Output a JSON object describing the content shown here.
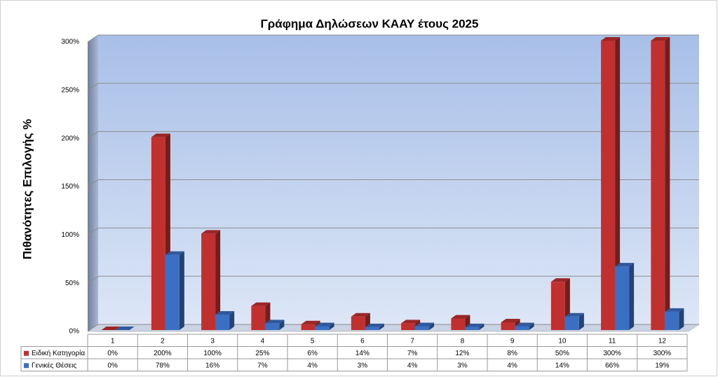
{
  "chart_data": {
    "type": "bar3d",
    "title": "Γράφημα Δηλώσεων ΚΑΑΥ έτους 2025",
    "y_label": "Πιθανότητες Επιλογής %",
    "categories": [
      "1",
      "2",
      "3",
      "4",
      "5",
      "6",
      "7",
      "8",
      "9",
      "10",
      "11",
      "12"
    ],
    "series": [
      {
        "name": "Ειδική Κατηγορία",
        "color": "#c0302e",
        "values": [
          0,
          200,
          100,
          25,
          6,
          14,
          7,
          12,
          8,
          50,
          300,
          300
        ],
        "value_labels": [
          "0%",
          "200%",
          "100%",
          "25%",
          "6%",
          "14%",
          "7%",
          "12%",
          "8%",
          "50%",
          "300%",
          "300%"
        ]
      },
      {
        "name": "Γενικές Θέσεις",
        "color": "#3b6fc3",
        "values": [
          0,
          78,
          16,
          7,
          4,
          3,
          4,
          3,
          4,
          14,
          66,
          19
        ],
        "value_labels": [
          "0%",
          "78%",
          "16%",
          "7%",
          "4%",
          "3%",
          "4%",
          "3%",
          "4%",
          "14%",
          "66%",
          "19%"
        ]
      }
    ],
    "ylim": [
      0,
      300
    ],
    "yticks": [
      {
        "value": 0,
        "label": "0%"
      },
      {
        "value": 50,
        "label": "50%"
      },
      {
        "value": 100,
        "label": "100%"
      },
      {
        "value": 150,
        "label": "150%"
      },
      {
        "value": 200,
        "label": "200%"
      },
      {
        "value": 250,
        "label": "250%"
      },
      {
        "value": 300,
        "label": "300%"
      }
    ],
    "grid": true
  }
}
